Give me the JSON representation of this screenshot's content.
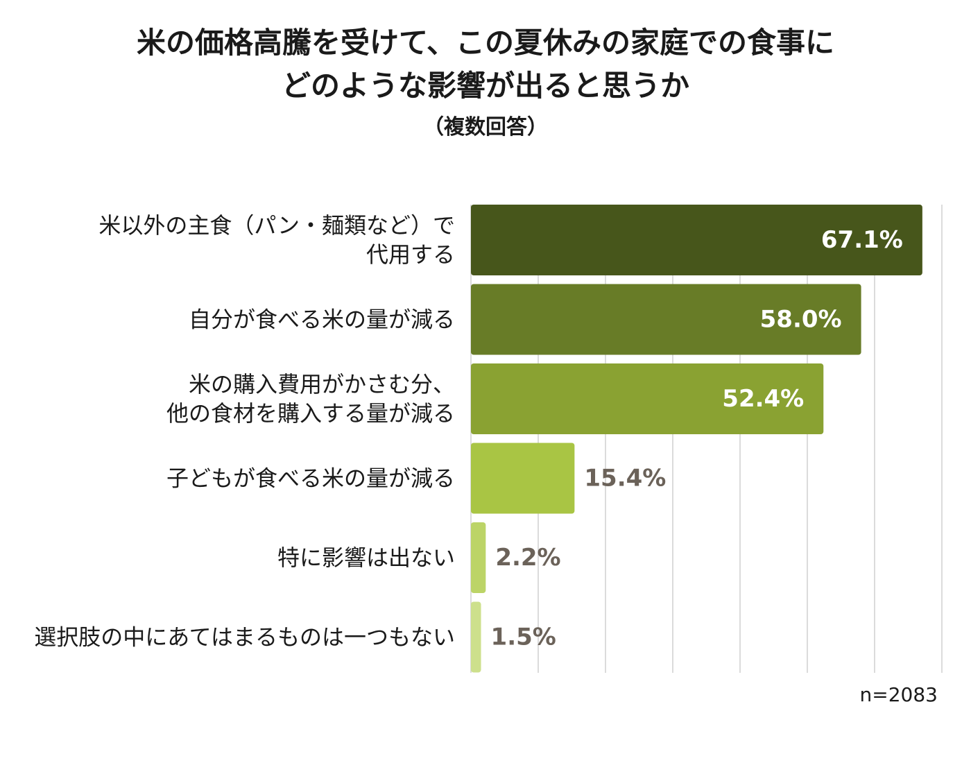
{
  "title": {
    "line1": "米の価格高騰を受けて、この夏休みの家庭での食事に",
    "line2": "どのような影響が出ると思うか",
    "subtitle": "（複数回答）"
  },
  "note": "n=2083",
  "chart_data": {
    "type": "bar",
    "orientation": "horizontal",
    "categories": [
      [
        "米以外の主食（パン・麺類など）で",
        "代用する"
      ],
      [
        "自分が食べる米の量が減る"
      ],
      [
        "米の購入費用がかさむ分、",
        "他の食材を購入する量が減る"
      ],
      [
        "子どもが食べる米の量が減る"
      ],
      [
        "特に影響は出ない"
      ],
      [
        "選択肢の中にあてはまるものは一つもない"
      ]
    ],
    "values": [
      67.1,
      58.0,
      52.4,
      15.4,
      2.2,
      1.5
    ],
    "value_labels": [
      "67.1%",
      "58.0%",
      "52.4%",
      "15.4%",
      "2.2%",
      "1.5%"
    ],
    "colors": [
      "#47561b",
      "#687c27",
      "#8aa232",
      "#a9c544",
      "#bcd467",
      "#cde08c"
    ],
    "xlim": [
      0,
      70
    ],
    "grid": true
  }
}
